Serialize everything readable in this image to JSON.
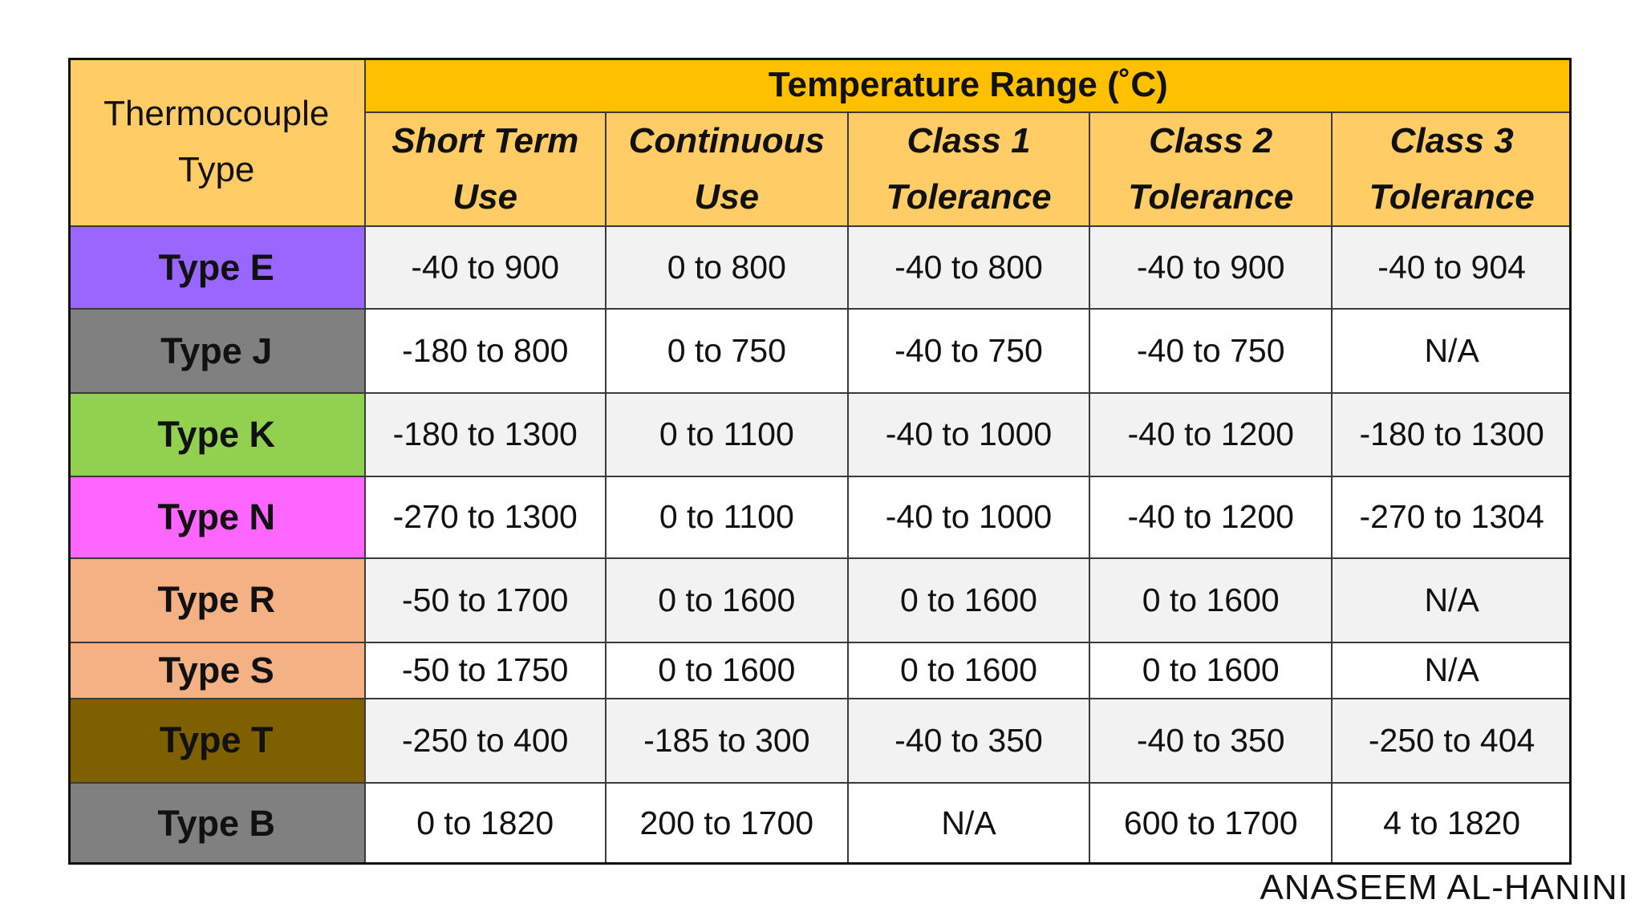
{
  "header": {
    "row_label": "Thermocouple Type",
    "group": "Temperature Range (˚C)",
    "group_color": "#FFC000",
    "columns_color": "#FFCC66",
    "columns": [
      "Short Term Use",
      "Continuous Use",
      "Class 1 Tolerance",
      "Class 2 Tolerance",
      "Class 3 Tolerance"
    ]
  },
  "table": {
    "rows": [
      {
        "type": "Type E",
        "color": "#9966FF",
        "cells": [
          "-40 to 900",
          "0 to 800",
          "-40 to 800",
          "-40 to 900",
          "-40 to 904"
        ]
      },
      {
        "type": "Type J",
        "color": "#808080",
        "cells": [
          "-180 to 800",
          "0 to 750",
          "-40 to 750",
          "-40 to 750",
          "N/A"
        ]
      },
      {
        "type": "Type K",
        "color": "#92D050",
        "cells": [
          "-180 to 1300",
          "0 to 1100",
          "-40 to 1000",
          "-40 to 1200",
          "-180 to 1300"
        ]
      },
      {
        "type": "Type N",
        "color": "#FF66FF",
        "cells": [
          "-270 to 1300",
          "0 to 1100",
          "-40 to 1000",
          "-40 to 1200",
          "-270 to 1304"
        ]
      },
      {
        "type": "Type R",
        "color": "#F4B183",
        "cells": [
          "-50 to 1700",
          "0 to 1600",
          "0 to 1600",
          "0 to 1600",
          "N/A"
        ]
      },
      {
        "type": "Type S",
        "color": "#F4B183",
        "cells": [
          "-50 to 1750",
          "0 to 1600",
          "0 to 1600",
          "0 to 1600",
          "N/A"
        ]
      },
      {
        "type": "Type T",
        "color": "#7F6000",
        "cells": [
          "-250 to 400",
          "-185 to 300",
          "-40 to 350",
          "-40 to 350",
          "-250 to 404"
        ]
      },
      {
        "type": "Type B",
        "color": "#808080",
        "cells": [
          "0 to 1820",
          "200 to 1700",
          "N/A",
          "600 to 1700",
          "4 to 1820"
        ]
      }
    ]
  },
  "footer": {
    "credit": "ANASEEM AL-HANINI"
  }
}
